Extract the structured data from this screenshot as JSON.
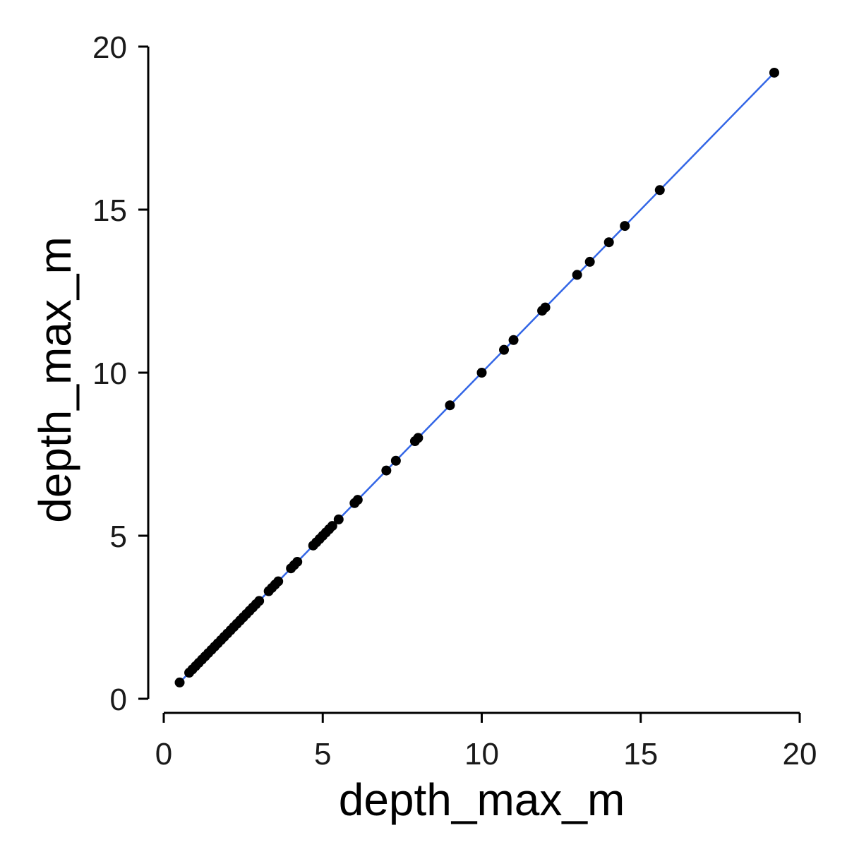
{
  "chart_data": {
    "type": "scatter",
    "title": "",
    "xlabel": "depth_max_m",
    "ylabel": "depth_max_m",
    "xlim": [
      0,
      20
    ],
    "ylim": [
      0,
      20
    ],
    "x_ticks": [
      0,
      5,
      10,
      15,
      20
    ],
    "y_ticks": [
      0,
      5,
      10,
      15,
      20
    ],
    "grid": false,
    "legend": "none",
    "point_color": "#000000",
    "fit_line": {
      "color": "#3366e6",
      "from": [
        0.5,
        0.5
      ],
      "to": [
        19.2,
        19.2
      ]
    },
    "series": [
      {
        "values_x": [
          0.5,
          0.8,
          0.9,
          1.0,
          1.1,
          1.2,
          1.3,
          1.4,
          1.5,
          1.6,
          1.7,
          1.8,
          1.9,
          2.0,
          2.1,
          2.2,
          2.3,
          2.4,
          2.5,
          2.6,
          2.7,
          2.8,
          2.9,
          3.0,
          3.3,
          3.4,
          3.5,
          3.6,
          4.0,
          4.1,
          4.2,
          4.7,
          4.8,
          4.9,
          5.0,
          5.1,
          5.2,
          5.3,
          5.5,
          6.0,
          6.1,
          7.0,
          7.3,
          7.9,
          8.0,
          9.0,
          10.0,
          10.7,
          11.0,
          11.9,
          12.0,
          13.0,
          13.4,
          14.0,
          14.5,
          15.6,
          19.2
        ],
        "values_y": [
          0.5,
          0.8,
          0.9,
          1.0,
          1.1,
          1.2,
          1.3,
          1.4,
          1.5,
          1.6,
          1.7,
          1.8,
          1.9,
          2.0,
          2.1,
          2.2,
          2.3,
          2.4,
          2.5,
          2.6,
          2.7,
          2.8,
          2.9,
          3.0,
          3.3,
          3.4,
          3.5,
          3.6,
          4.0,
          4.1,
          4.2,
          4.7,
          4.8,
          4.9,
          5.0,
          5.1,
          5.2,
          5.3,
          5.5,
          6.0,
          6.1,
          7.0,
          7.3,
          7.9,
          8.0,
          9.0,
          10.0,
          10.7,
          11.0,
          11.9,
          12.0,
          13.0,
          13.4,
          14.0,
          14.5,
          15.6,
          19.2
        ]
      }
    ]
  }
}
